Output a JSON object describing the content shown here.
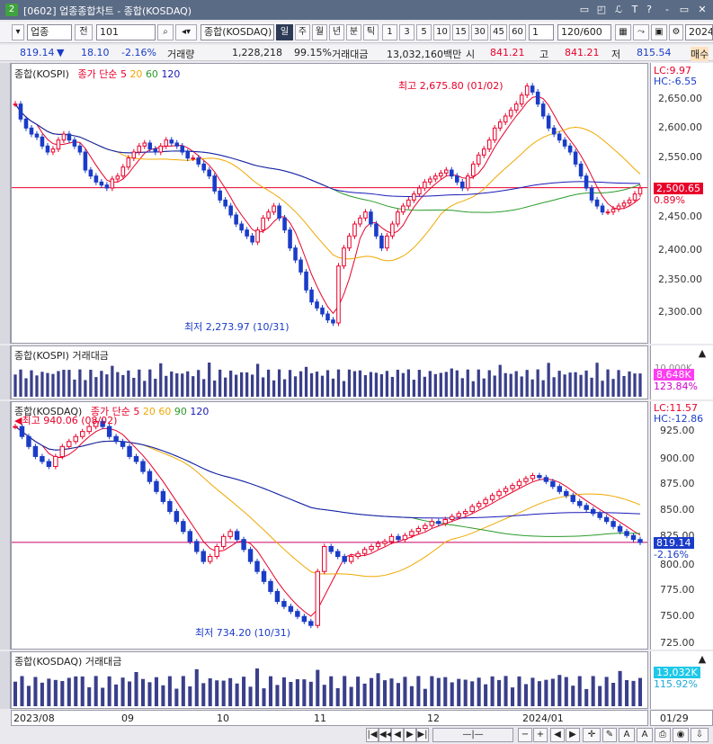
{
  "window": {
    "number": "2",
    "title": "[0602] 업종종합차트 - 종합(KOSDAQ)",
    "buttons": [
      "▭",
      "◰",
      "ℒ",
      "T",
      "?",
      "-",
      "▭",
      "✕"
    ]
  },
  "toolbar": {
    "sector_select": "업종",
    "all_label": "전",
    "code": "101",
    "index_name": "종합(KOSDAQ)",
    "periods": [
      "일",
      "주",
      "월",
      "년",
      "분",
      "틱"
    ],
    "active_period": "일",
    "intervals": [
      "1",
      "3",
      "5",
      "10",
      "15",
      "30",
      "45",
      "60"
    ],
    "unit": "1",
    "count": "120/600",
    "date": "2024/"
  },
  "info": {
    "price": "819.14",
    "arrow": "▼",
    "change": "18.10",
    "rate": "-2.16%",
    "vol_label": "거래량",
    "volume": "1,228,218",
    "vol_ratio": "99.15%",
    "amt_label": "거래대금",
    "amount": "13,032,160백만",
    "open_label": "시",
    "open": "841.21",
    "high_label": "고",
    "high": "841.21",
    "low_label": "저",
    "low": "815.54",
    "sell_label": "매수"
  },
  "kospi": {
    "title": "종합(KOSPI)",
    "ma_label": "종가 단순",
    "ma": [
      "5",
      "20",
      "60",
      "120"
    ],
    "lc": "LC:9.97",
    "hc": "HC:-6.55",
    "y_ticks": [
      "2,650.00",
      "2,600.00",
      "2,550.00",
      "2,500.00",
      "2,450.00",
      "2,400.00",
      "2,350.00",
      "2,300.00"
    ],
    "current": "2,500.65",
    "current_rate": "0.89%",
    "high_note": "최고 2,675.80 (01/02)",
    "low_note": "최저 2,273.97 (10/31)",
    "vol_title": "종합(KOSPI) 거래대금",
    "vol_value": "8,648K",
    "vol_rate": "123.84%",
    "vol_ticks": [
      "10,000K"
    ]
  },
  "kosdaq": {
    "title": "종합(KOSDAQ)",
    "ma_label": "종가 단순",
    "ma": [
      "5",
      "20",
      "60",
      "90",
      "120"
    ],
    "lc": "LC:11.57",
    "hc": "HC:-12.86",
    "y_ticks": [
      "925.00",
      "900.00",
      "875.00",
      "850.00",
      "825.00",
      "800.00",
      "775.00",
      "750.00",
      "725.00"
    ],
    "current": "819.14",
    "current_rate": "-2.16%",
    "high_note": "최고 940.06 (08/02)",
    "low_note": "최저 734.20 (10/31)",
    "vol_title": "종합(KOSDAQ) 거래대금",
    "vol_value": "13,032K",
    "vol_rate": "115.92%"
  },
  "xaxis": {
    "labels": [
      "2023/08",
      "09",
      "10",
      "11",
      "12",
      "2024/01"
    ],
    "right": "01/29"
  },
  "colors": {
    "up": "#e8002a",
    "down": "#1a3cc8",
    "ma5": "#e8002a",
    "ma20": "#f0a800",
    "ma60": "#2a9a2a",
    "ma90": "#ff7a00",
    "ma120": "#1a1ab8"
  },
  "chart_data": [
    {
      "type": "candlestick",
      "name": "종합(KOSPI)",
      "ylim": [
        2260,
        2680
      ],
      "close": [
        2640,
        2615,
        2600,
        2590,
        2585,
        2570,
        2560,
        2565,
        2580,
        2590,
        2580,
        2570,
        2560,
        2530,
        2520,
        2510,
        2505,
        2500,
        2515,
        2520,
        2535,
        2550,
        2560,
        2570,
        2575,
        2565,
        2560,
        2570,
        2580,
        2575,
        2570,
        2560,
        2550,
        2550,
        2540,
        2530,
        2520,
        2495,
        2480,
        2470,
        2455,
        2440,
        2430,
        2420,
        2410,
        2430,
        2450,
        2460,
        2470,
        2450,
        2430,
        2400,
        2380,
        2360,
        2330,
        2310,
        2300,
        2290,
        2280,
        2275,
        2370,
        2400,
        2420,
        2440,
        2450,
        2460,
        2440,
        2420,
        2400,
        2420,
        2440,
        2460,
        2470,
        2480,
        2490,
        2500,
        2510,
        2515,
        2520,
        2525,
        2530,
        2520,
        2510,
        2500,
        2520,
        2540,
        2555,
        2565,
        2580,
        2600,
        2610,
        2620,
        2630,
        2640,
        2655,
        2670,
        2660,
        2640,
        2620,
        2600,
        2590,
        2580,
        2570,
        2560,
        2540,
        2520,
        2500,
        2480,
        2470,
        2460,
        2460,
        2465,
        2470,
        2475,
        2480,
        2490,
        2500
      ]
    },
    {
      "type": "candlestick",
      "name": "종합(KOSDAQ)",
      "ylim": [
        720,
        945
      ],
      "close": [
        935,
        925,
        915,
        905,
        900,
        895,
        905,
        915,
        920,
        925,
        930,
        935,
        940,
        935,
        925,
        920,
        915,
        905,
        900,
        890,
        880,
        870,
        860,
        850,
        840,
        830,
        820,
        810,
        800,
        805,
        815,
        825,
        830,
        822,
        812,
        800,
        790,
        780,
        770,
        760,
        755,
        750,
        745,
        740,
        736,
        790,
        815,
        810,
        805,
        800,
        805,
        808,
        812,
        815,
        818,
        820,
        825,
        822,
        826,
        830,
        833,
        836,
        840,
        838,
        842,
        845,
        848,
        850,
        855,
        858,
        862,
        866,
        870,
        873,
        876,
        880,
        883,
        886,
        884,
        880,
        875,
        870,
        866,
        860,
        856,
        852,
        848,
        844,
        840,
        835,
        830,
        826,
        822,
        819
      ]
    }
  ]
}
